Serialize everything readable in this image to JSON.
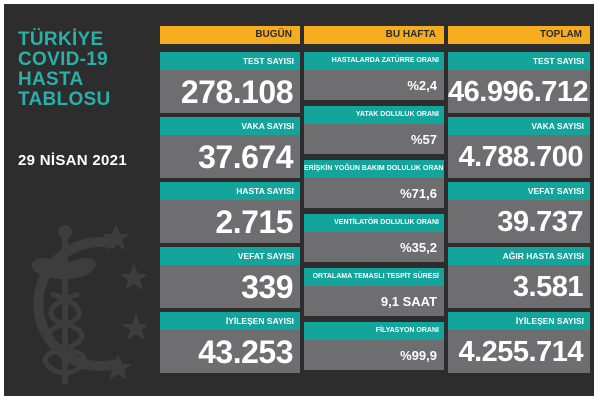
{
  "title_lines": [
    "TÜRKİYE",
    "COVID-19",
    "HASTA",
    "TABLOSU"
  ],
  "date": "29 NİSAN 2021",
  "colors": {
    "background": "#2d2d2d",
    "header": "#f6ac1f",
    "label": "#13a49c",
    "value_bg": "#6e6e70",
    "title": "#2ab0aa"
  },
  "emblem_icon": "caduceus-crescent-stars-icon",
  "today": {
    "header": "BUGÜN",
    "cards": [
      {
        "label": "TEST SAYISI",
        "value": "278.108"
      },
      {
        "label": "VAKA SAYISI",
        "value": "37.674"
      },
      {
        "label": "HASTA SAYISI",
        "value": "2.715"
      },
      {
        "label": "VEFAT SAYISI",
        "value": "339"
      },
      {
        "label": "İYİLEŞEN SAYISI",
        "value": "43.253"
      }
    ]
  },
  "this_week": {
    "header": "BU HAFTA",
    "cards": [
      {
        "label": "HASTALARDA ZATÜRRE ORANI",
        "value": "%2,4"
      },
      {
        "label": "YATAK DOLULUK ORANI",
        "value": "%57"
      },
      {
        "label": "ERİŞKİN YOĞUN BAKIM DOLULUK ORANI",
        "value": "%71,6"
      },
      {
        "label": "VENTİLATÖR DOLULUK ORANI",
        "value": "%35,2"
      },
      {
        "label": "ORTALAMA TEMASLI TESPİT SÜRESİ",
        "value": "9,1 SAAT"
      },
      {
        "label": "FİLYASYON ORANI",
        "value": "%99,9"
      }
    ]
  },
  "total": {
    "header": "TOPLAM",
    "cards": [
      {
        "label": "TEST SAYISI",
        "value": "46.996.712"
      },
      {
        "label": "VAKA SAYISI",
        "value": "4.788.700"
      },
      {
        "label": "VEFAT SAYISI",
        "value": "39.737"
      },
      {
        "label": "AĞIR HASTA SAYISI",
        "value": "3.581"
      },
      {
        "label": "İYİLEŞEN SAYISI",
        "value": "4.255.714"
      }
    ]
  }
}
